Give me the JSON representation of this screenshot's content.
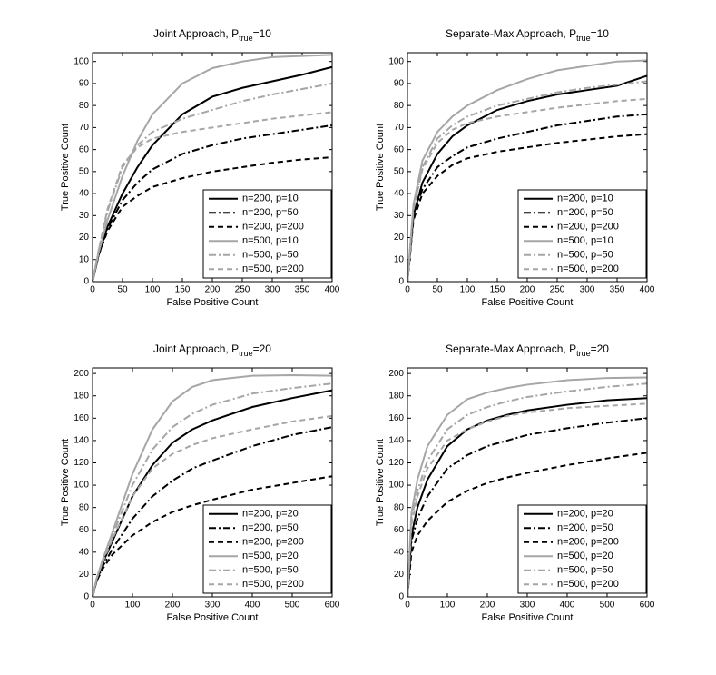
{
  "chart_data": [
    {
      "type": "line",
      "title": [
        "Joint Approach, P",
        "true",
        "=10"
      ],
      "xlabel": "False Positive Count",
      "ylabel": "True Positive Count",
      "x": [
        0,
        10,
        25,
        50,
        75,
        100,
        150,
        200,
        250,
        300,
        350,
        400
      ],
      "xlim": [
        0,
        400
      ],
      "xticks": [
        0,
        50,
        100,
        150,
        200,
        250,
        300,
        350,
        400
      ],
      "ylim": [
        0,
        104
      ],
      "yticks": [
        0,
        10,
        20,
        30,
        40,
        50,
        60,
        70,
        80,
        90,
        100
      ],
      "legend": "lower right",
      "series": [
        {
          "name": "n=200, p=10",
          "color": "#000000",
          "linestyle": "solid",
          "values": [
            0,
            12,
            25,
            40,
            52,
            62,
            76,
            84,
            88,
            91,
            94,
            97.5
          ]
        },
        {
          "name": "n=200, p=50",
          "color": "#000000",
          "linestyle": "dashdot",
          "values": [
            0,
            12,
            24,
            37,
            45,
            51,
            58,
            62,
            65,
            67,
            69,
            71
          ]
        },
        {
          "name": "n=200, p=200",
          "color": "#000000",
          "linestyle": "dashed",
          "values": [
            0,
            12,
            23,
            34,
            39,
            43,
            47,
            50,
            52,
            54,
            55.5,
            56.5
          ]
        },
        {
          "name": "n=500, p=10",
          "color": "#a6a6a6",
          "linestyle": "solid",
          "values": [
            0,
            13,
            28,
            48,
            64,
            76,
            90,
            97,
            100,
            102,
            102.5,
            103
          ]
        },
        {
          "name": "n=500, p=50",
          "color": "#a6a6a6",
          "linestyle": "dashdot",
          "values": [
            0,
            14,
            32,
            52,
            62,
            68,
            74,
            78,
            82,
            85,
            87.5,
            90
          ]
        },
        {
          "name": "n=500, p=200",
          "color": "#a6a6a6",
          "linestyle": "dashed",
          "values": [
            0,
            14,
            33,
            53,
            61,
            65,
            68,
            70,
            72,
            74,
            75.5,
            77
          ]
        }
      ]
    },
    {
      "type": "line",
      "title": [
        "Separate-Max Approach, P",
        "true",
        "=10"
      ],
      "xlabel": "False Positive Count",
      "ylabel": "True Positive Count",
      "x": [
        0,
        10,
        25,
        50,
        75,
        100,
        150,
        200,
        250,
        300,
        350,
        400
      ],
      "xlim": [
        0,
        400
      ],
      "xticks": [
        0,
        50,
        100,
        150,
        200,
        250,
        300,
        350,
        400
      ],
      "ylim": [
        0,
        104
      ],
      "yticks": [
        0,
        10,
        20,
        30,
        40,
        50,
        60,
        70,
        80,
        90,
        100
      ],
      "legend": "lower right",
      "series": [
        {
          "name": "n=200, p=10",
          "color": "#000000",
          "linestyle": "solid",
          "values": [
            0,
            30,
            45,
            58,
            66,
            71,
            78,
            82,
            85,
            87,
            89,
            93.5
          ]
        },
        {
          "name": "n=200, p=50",
          "color": "#000000",
          "linestyle": "dashdot",
          "values": [
            0,
            30,
            42,
            52,
            57,
            61,
            65,
            68,
            71,
            73,
            75,
            76
          ]
        },
        {
          "name": "n=200, p=200",
          "color": "#000000",
          "linestyle": "dashed",
          "values": [
            0,
            28,
            40,
            48,
            53,
            56,
            59,
            61,
            63,
            64.5,
            66,
            67
          ]
        },
        {
          "name": "n=500, p=10",
          "color": "#a6a6a6",
          "linestyle": "solid",
          "values": [
            0,
            35,
            55,
            68,
            75,
            80,
            87,
            92,
            96,
            98,
            100,
            100.5
          ]
        },
        {
          "name": "n=500, p=50",
          "color": "#a6a6a6",
          "linestyle": "dashdot",
          "values": [
            0,
            33,
            52,
            65,
            71,
            75,
            80,
            83,
            86,
            88,
            89.5,
            91
          ]
        },
        {
          "name": "n=500, p=200",
          "color": "#a6a6a6",
          "linestyle": "dashed",
          "values": [
            0,
            33,
            51,
            63,
            69,
            72,
            75,
            77,
            79,
            80.5,
            82,
            83
          ]
        }
      ]
    },
    {
      "type": "line",
      "title": [
        "Joint Approach, P",
        "true",
        "=20"
      ],
      "xlabel": "False Positive Count",
      "ylabel": "True Positive Count",
      "x": [
        0,
        10,
        25,
        50,
        100,
        150,
        200,
        250,
        300,
        400,
        500,
        600
      ],
      "xlim": [
        0,
        600
      ],
      "xticks": [
        0,
        100,
        200,
        300,
        400,
        500,
        600
      ],
      "ylim": [
        0,
        205
      ],
      "yticks": [
        0,
        20,
        40,
        60,
        80,
        100,
        120,
        140,
        160,
        180,
        200
      ],
      "legend": "lower right",
      "series": [
        {
          "name": "n=200, p=20",
          "color": "#000000",
          "linestyle": "solid",
          "values": [
            0,
            15,
            30,
            50,
            90,
            118,
            138,
            150,
            158,
            170,
            178,
            185
          ]
        },
        {
          "name": "n=200, p=50",
          "color": "#000000",
          "linestyle": "dashdot",
          "values": [
            0,
            14,
            27,
            43,
            70,
            90,
            104,
            115,
            122,
            135,
            145,
            152
          ]
        },
        {
          "name": "n=200, p=200",
          "color": "#000000",
          "linestyle": "dashed",
          "values": [
            0,
            14,
            25,
            38,
            55,
            67,
            76,
            82,
            87,
            96,
            102,
            108
          ]
        },
        {
          "name": "n=500, p=20",
          "color": "#a6a6a6",
          "linestyle": "solid",
          "values": [
            0,
            16,
            33,
            58,
            110,
            150,
            175,
            188,
            194,
            198,
            198.5,
            198
          ]
        },
        {
          "name": "n=500, p=50",
          "color": "#a6a6a6",
          "linestyle": "dashdot",
          "values": [
            0,
            16,
            32,
            55,
            100,
            132,
            152,
            164,
            172,
            182,
            187,
            191
          ]
        },
        {
          "name": "n=500, p=200",
          "color": "#a6a6a6",
          "linestyle": "dashed",
          "values": [
            0,
            16,
            31,
            52,
            90,
            115,
            128,
            136,
            142,
            150,
            157,
            162
          ]
        }
      ]
    },
    {
      "type": "line",
      "title": [
        "Separate-Max Approach, P",
        "true",
        "=20"
      ],
      "xlabel": "False Positive Count",
      "ylabel": "True Positive Count",
      "x": [
        0,
        10,
        25,
        50,
        100,
        150,
        200,
        250,
        300,
        400,
        500,
        600
      ],
      "xlim": [
        0,
        600
      ],
      "xticks": [
        0,
        100,
        200,
        300,
        400,
        500,
        600
      ],
      "ylim": [
        0,
        205
      ],
      "yticks": [
        0,
        20,
        40,
        60,
        80,
        100,
        120,
        140,
        160,
        180,
        200
      ],
      "legend": "lower right",
      "series": [
        {
          "name": "n=200, p=20",
          "color": "#000000",
          "linestyle": "solid",
          "values": [
            0,
            55,
            80,
            105,
            135,
            150,
            158,
            163,
            167,
            172,
            176,
            178
          ]
        },
        {
          "name": "n=200, p=50",
          "color": "#000000",
          "linestyle": "dashdot",
          "values": [
            0,
            50,
            70,
            90,
            115,
            127,
            135,
            140,
            145,
            151,
            156,
            160
          ]
        },
        {
          "name": "n=200, p=200",
          "color": "#000000",
          "linestyle": "dashed",
          "values": [
            0,
            40,
            55,
            68,
            85,
            95,
            102,
            107,
            111,
            118,
            124,
            129
          ]
        },
        {
          "name": "n=500, p=20",
          "color": "#a6a6a6",
          "linestyle": "solid",
          "values": [
            0,
            75,
            105,
            135,
            163,
            177,
            183,
            187,
            190,
            194,
            196,
            196.5
          ]
        },
        {
          "name": "n=500, p=50",
          "color": "#a6a6a6",
          "linestyle": "dashdot",
          "values": [
            0,
            70,
            95,
            122,
            150,
            163,
            170,
            175,
            179,
            184,
            188,
            191
          ]
        },
        {
          "name": "n=500, p=200",
          "color": "#a6a6a6",
          "linestyle": "dashed",
          "values": [
            0,
            65,
            90,
            115,
            140,
            150,
            157,
            162,
            165,
            169,
            171,
            173
          ]
        }
      ]
    }
  ]
}
